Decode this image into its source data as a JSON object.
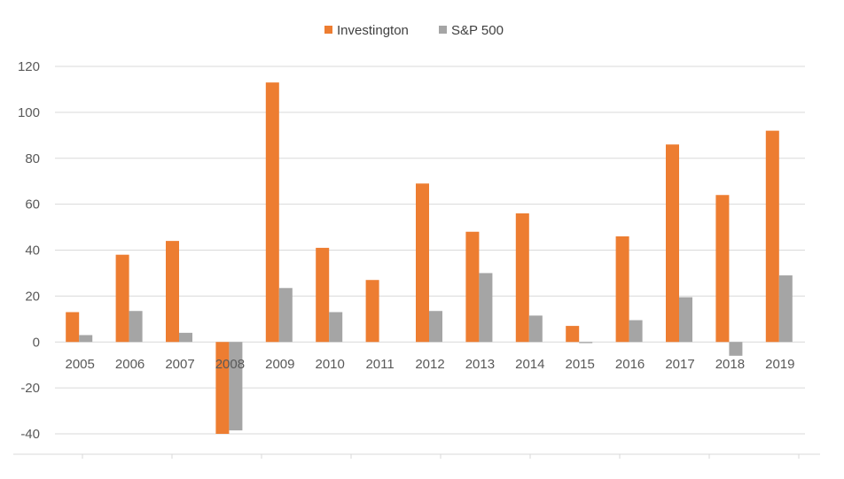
{
  "chart_data": {
    "type": "bar",
    "title": "",
    "xlabel": "",
    "ylabel": "",
    "categories": [
      "2005",
      "2006",
      "2007",
      "2008",
      "2009",
      "2010",
      "2011",
      "2012",
      "2013",
      "2014",
      "2015",
      "2016",
      "2017",
      "2018",
      "2019"
    ],
    "series": [
      {
        "name": "Investington",
        "color": "#ED7D31",
        "values": [
          13,
          38,
          44,
          -40,
          113,
          41,
          27,
          69,
          48,
          56,
          7,
          46,
          86,
          64,
          92
        ]
      },
      {
        "name": "S&P 500",
        "color": "#A5A5A5",
        "values": [
          3,
          13.5,
          4,
          -38.5,
          23.5,
          13,
          0,
          13.5,
          30,
          11.5,
          -0.5,
          9.5,
          19.5,
          -6,
          29
        ]
      }
    ],
    "ylim": [
      -40,
      120
    ],
    "yticks": [
      -40,
      -20,
      0,
      20,
      40,
      60,
      80,
      100,
      120
    ],
    "grid": true,
    "legend_position": "top"
  }
}
